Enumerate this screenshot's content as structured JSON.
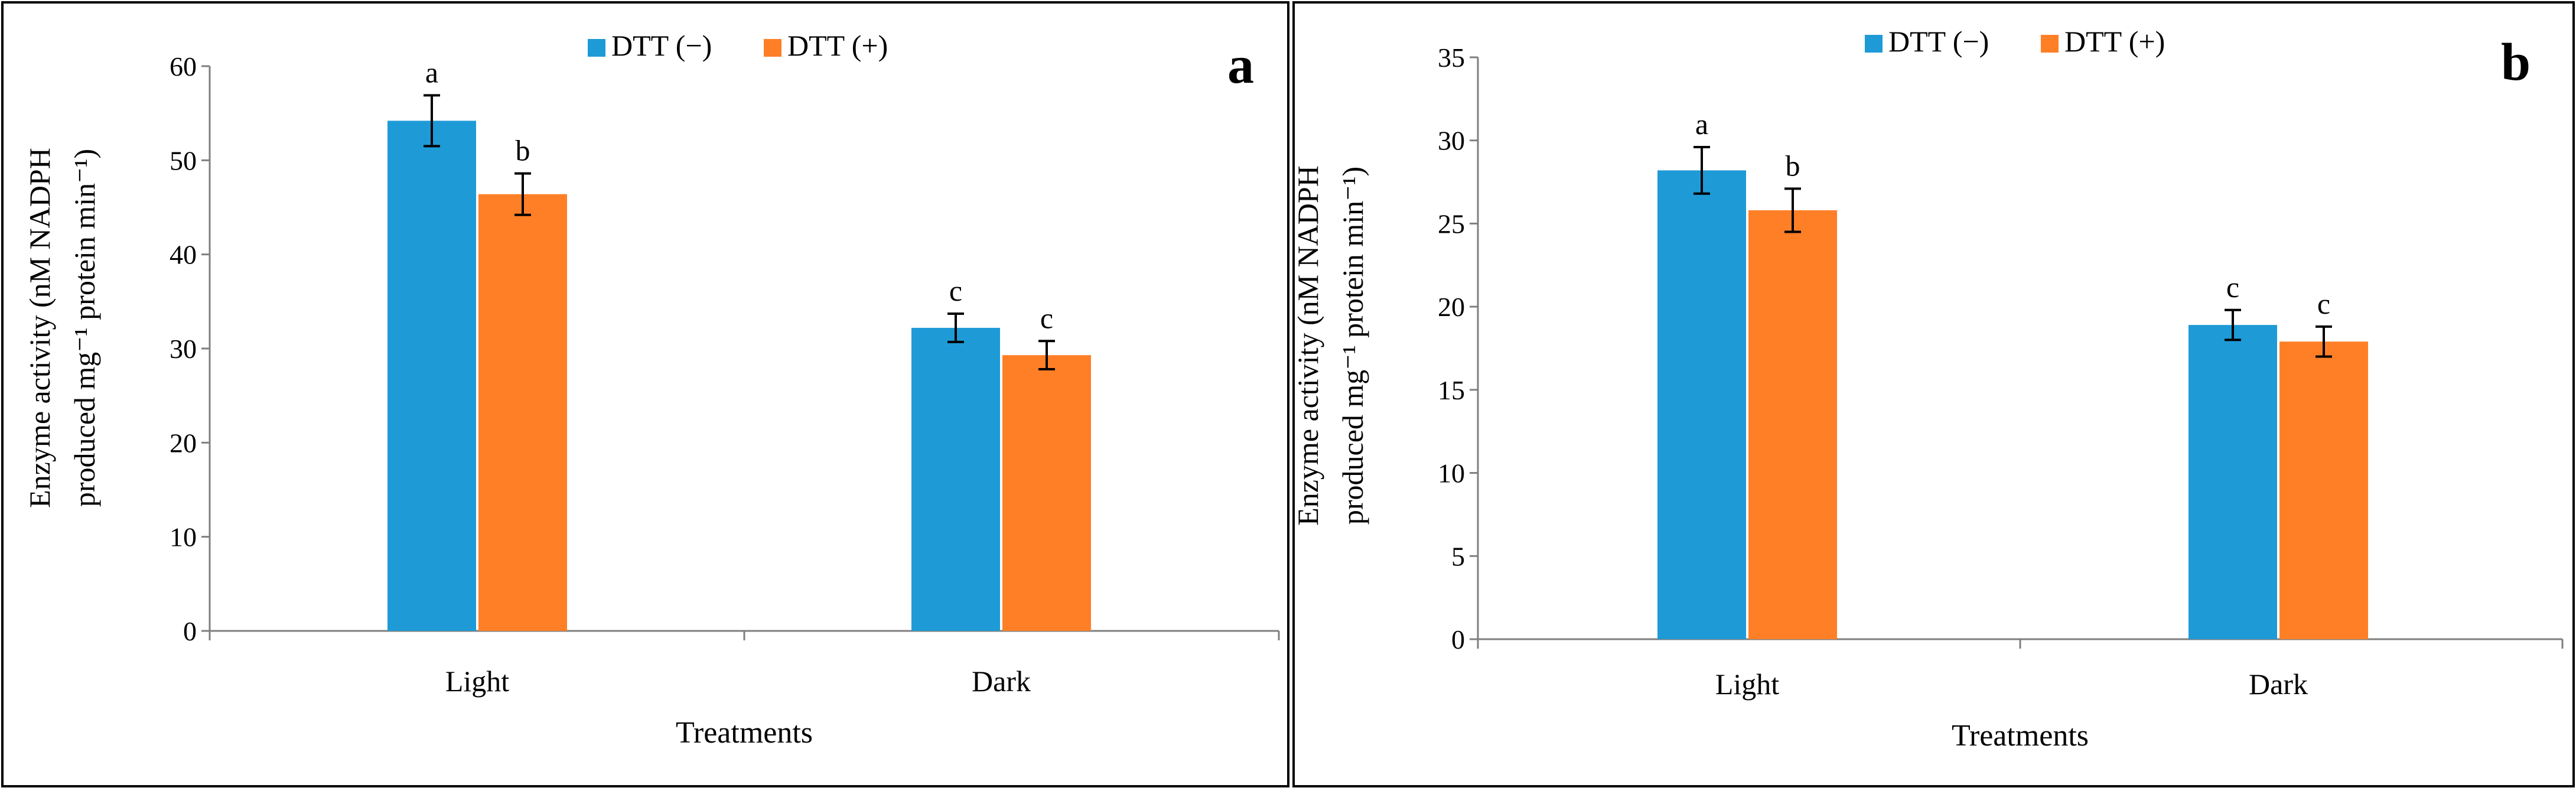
{
  "colors": {
    "series_minus": "#1E9BD7",
    "series_plus": "#FF7F27",
    "axis": "#7F7F7F",
    "text": "#000000"
  },
  "chart_data": [
    {
      "type": "bar",
      "panel_label": "a",
      "categories": [
        "Light",
        "Dark"
      ],
      "series": [
        {
          "name": "DTT (−)",
          "values": [
            54.2,
            32.2
          ],
          "errors": [
            2.7,
            1.5
          ],
          "letters": [
            "a",
            "c"
          ]
        },
        {
          "name": "DTT (+)",
          "values": [
            46.4,
            29.3
          ],
          "errors": [
            2.2,
            1.5
          ],
          "letters": [
            "b",
            "c"
          ]
        }
      ],
      "xlabel": "Treatments",
      "ylabel_line1": "Enzyme activity (nM NADPH",
      "ylabel_line2": "produced mg⁻¹ protein min⁻¹)",
      "ylim": [
        0,
        60
      ],
      "yticks": [
        0,
        10,
        20,
        30,
        40,
        50,
        60
      ],
      "legend": "top-center"
    },
    {
      "type": "bar",
      "panel_label": "b",
      "categories": [
        "Light",
        "Dark"
      ],
      "series": [
        {
          "name": "DTT (−)",
          "values": [
            28.2,
            18.9
          ],
          "errors": [
            1.4,
            0.9
          ],
          "letters": [
            "a",
            "c"
          ]
        },
        {
          "name": "DTT (+)",
          "values": [
            25.8,
            17.9
          ],
          "errors": [
            1.3,
            0.9
          ],
          "letters": [
            "b",
            "c"
          ]
        }
      ],
      "xlabel": "Treatments",
      "ylabel_line1": "Enzyme activity (nM NADPH",
      "ylabel_line2": "produced mg⁻¹ protein min⁻¹)",
      "ylim": [
        0,
        35
      ],
      "yticks": [
        0,
        5,
        10,
        15,
        20,
        25,
        30,
        35
      ],
      "legend": "top-center"
    }
  ]
}
